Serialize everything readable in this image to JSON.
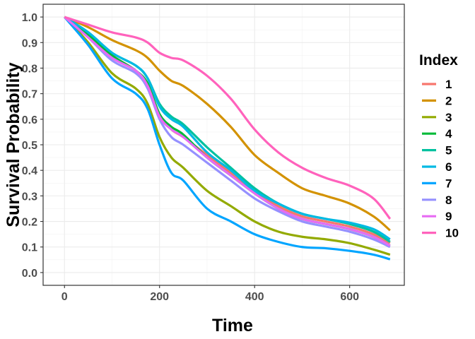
{
  "chart_data": {
    "type": "line",
    "xlabel": "Time",
    "ylabel": "Survival Probability",
    "xlim": [
      -45,
      715
    ],
    "ylim": [
      -0.05,
      1.05
    ],
    "x_ticks": [
      0,
      200,
      400,
      600
    ],
    "y_ticks": [
      0.0,
      0.1,
      0.2,
      0.3,
      0.4,
      0.5,
      0.6,
      0.7,
      0.8,
      0.9,
      1.0
    ],
    "y_tick_labels": [
      "0.0",
      "0.1",
      "0.2",
      "0.3",
      "0.4",
      "0.5",
      "0.6",
      "0.7",
      "0.8",
      "0.9",
      "1.0"
    ],
    "grid": true,
    "legend": {
      "title": "Index",
      "position": "right"
    },
    "x": [
      0,
      50,
      100,
      150,
      175,
      200,
      225,
      250,
      300,
      350,
      400,
      450,
      500,
      550,
      600,
      650,
      685
    ],
    "series": [
      {
        "name": "1",
        "color": "#F8766D",
        "values": [
          1.0,
          0.93,
          0.85,
          0.79,
          0.73,
          0.62,
          0.56,
          0.53,
          0.46,
          0.39,
          0.32,
          0.26,
          0.22,
          0.2,
          0.18,
          0.15,
          0.115
        ]
      },
      {
        "name": "2",
        "color": "#D39200",
        "values": [
          1.0,
          0.96,
          0.91,
          0.87,
          0.84,
          0.79,
          0.75,
          0.73,
          0.66,
          0.57,
          0.46,
          0.39,
          0.33,
          0.3,
          0.27,
          0.22,
          0.165
        ]
      },
      {
        "name": "3",
        "color": "#93AA00",
        "values": [
          1.0,
          0.9,
          0.78,
          0.72,
          0.66,
          0.53,
          0.45,
          0.41,
          0.32,
          0.26,
          0.2,
          0.16,
          0.14,
          0.13,
          0.115,
          0.09,
          0.07
        ]
      },
      {
        "name": "4",
        "color": "#00BA38",
        "values": [
          1.0,
          0.93,
          0.85,
          0.79,
          0.74,
          0.62,
          0.57,
          0.54,
          0.45,
          0.38,
          0.31,
          0.25,
          0.21,
          0.19,
          0.17,
          0.14,
          0.105
        ]
      },
      {
        "name": "5",
        "color": "#00C19F",
        "values": [
          1.0,
          0.94,
          0.86,
          0.81,
          0.76,
          0.66,
          0.61,
          0.58,
          0.49,
          0.41,
          0.33,
          0.27,
          0.23,
          0.21,
          0.19,
          0.16,
          0.12
        ]
      },
      {
        "name": "6",
        "color": "#00B9E3",
        "values": [
          1.0,
          0.94,
          0.86,
          0.81,
          0.76,
          0.65,
          0.6,
          0.57,
          0.47,
          0.4,
          0.32,
          0.27,
          0.23,
          0.21,
          0.195,
          0.17,
          0.13
        ]
      },
      {
        "name": "7",
        "color": "#00A5FF",
        "values": [
          1.0,
          0.89,
          0.76,
          0.7,
          0.64,
          0.5,
          0.39,
          0.36,
          0.25,
          0.2,
          0.15,
          0.12,
          0.1,
          0.095,
          0.085,
          0.07,
          0.052
        ]
      },
      {
        "name": "8",
        "color": "#9590FF",
        "values": [
          1.0,
          0.92,
          0.83,
          0.78,
          0.72,
          0.6,
          0.53,
          0.5,
          0.43,
          0.36,
          0.29,
          0.24,
          0.2,
          0.18,
          0.16,
          0.13,
          0.1
        ]
      },
      {
        "name": "9",
        "color": "#E76BF3",
        "values": [
          1.0,
          0.92,
          0.84,
          0.79,
          0.73,
          0.61,
          0.56,
          0.53,
          0.45,
          0.38,
          0.31,
          0.25,
          0.21,
          0.19,
          0.17,
          0.14,
          0.105
        ]
      },
      {
        "name": "10",
        "color": "#FF62BC",
        "values": [
          1.0,
          0.97,
          0.94,
          0.92,
          0.9,
          0.86,
          0.84,
          0.83,
          0.77,
          0.68,
          0.56,
          0.47,
          0.41,
          0.37,
          0.34,
          0.29,
          0.21
        ]
      }
    ]
  }
}
